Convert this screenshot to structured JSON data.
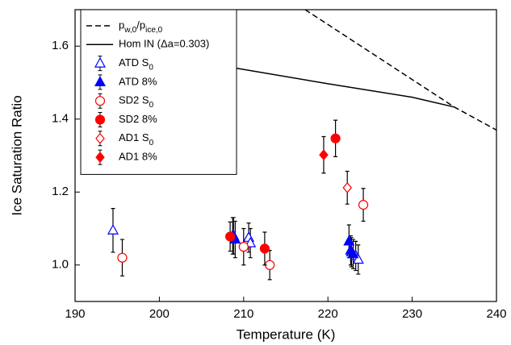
{
  "chart_data": {
    "type": "scatter",
    "x_label": "Temperature (K)",
    "y_label": "Ice Saturation Ratio",
    "xlim": [
      190,
      240
    ],
    "ylim": [
      0.9,
      1.7
    ],
    "xticks": [
      190,
      200,
      210,
      220,
      230,
      240
    ],
    "yticks": [
      {
        "value": 1.0,
        "label": "1.0"
      },
      {
        "value": 1.2,
        "label": "1.2"
      },
      {
        "value": 1.4,
        "label": "1.4"
      },
      {
        "value": 1.6,
        "label": "1.6"
      }
    ],
    "lines": [
      {
        "name": "p_{w,0}/p_{ice,0}",
        "color": "#000000",
        "dash": true,
        "x": [
          217.3,
          235,
          240
        ],
        "values": [
          1.7,
          1.433,
          1.37
        ]
      },
      {
        "name": "Hom IN (Δa=0.303)",
        "color": "#000000",
        "dash": false,
        "x": [
          209,
          220,
          230,
          235
        ],
        "values": [
          1.54,
          1.497,
          1.46,
          1.433
        ]
      }
    ],
    "series": [
      {
        "name": "ATD S_{0}",
        "color": "#0000ff",
        "marker": "triangle",
        "filled": false,
        "x": [
          194.5,
          208.7,
          210.6,
          210.8,
          222.8,
          223.3,
          223.6
        ],
        "values": [
          1.095,
          1.08,
          1.075,
          1.06,
          1.035,
          1.025,
          1.015
        ],
        "errors": [
          0.06,
          0.05,
          0.04,
          0.04,
          0.04,
          0.04,
          0.04
        ]
      },
      {
        "name": "ATD 8%",
        "color": "#0000ff",
        "marker": "triangle",
        "filled": true,
        "x": [
          208.8,
          209.0,
          222.5,
          222.7,
          223.0
        ],
        "values": [
          1.08,
          1.07,
          1.065,
          1.04,
          1.03
        ],
        "errors": [
          0.05,
          0.05,
          0.045,
          0.04,
          0.04
        ]
      },
      {
        "name": "SD2 S_{0}",
        "color": "#ff0000",
        "marker": "circle",
        "filled": false,
        "x": [
          195.6,
          210.0,
          213.1,
          224.2
        ],
        "values": [
          1.02,
          1.05,
          1.0,
          1.165
        ],
        "errors": [
          0.05,
          0.05,
          0.04,
          0.045
        ]
      },
      {
        "name": "SD2 8%",
        "color": "#ff0000",
        "marker": "circle",
        "filled": true,
        "x": [
          208.4,
          212.5,
          220.9
        ],
        "values": [
          1.078,
          1.045,
          1.347
        ],
        "errors": [
          0.04,
          0.045,
          0.05
        ]
      },
      {
        "name": "AD1 S_{0}",
        "color": "#ff0000",
        "marker": "diamond",
        "filled": false,
        "x": [
          222.3
        ],
        "values": [
          1.212
        ],
        "errors": [
          0.045
        ]
      },
      {
        "name": "AD1 8%",
        "color": "#ff0000",
        "marker": "diamond",
        "filled": true,
        "x": [
          219.5
        ],
        "values": [
          1.302
        ],
        "errors": [
          0.05
        ]
      }
    ]
  }
}
